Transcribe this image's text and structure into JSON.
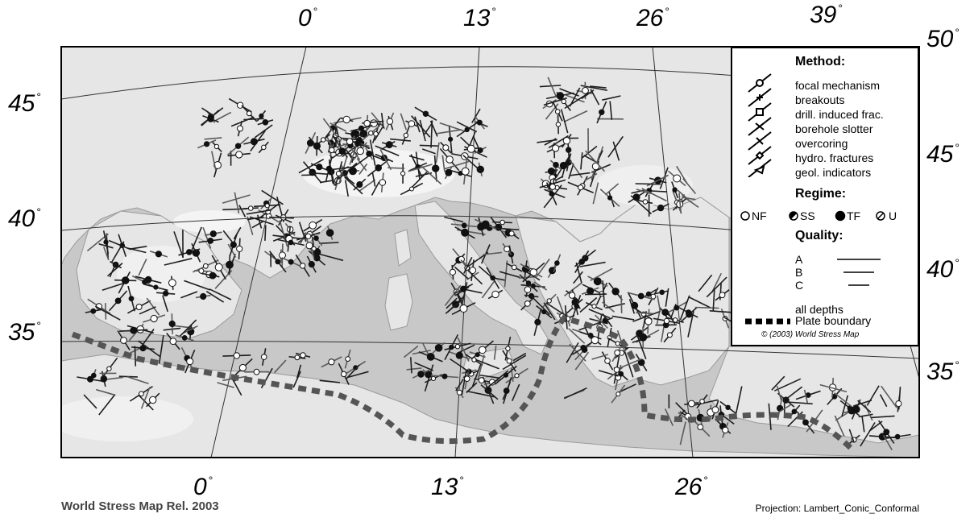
{
  "top_labels": [
    {
      "value": "0",
      "unit": "°"
    },
    {
      "value": "13",
      "unit": "°"
    },
    {
      "value": "26",
      "unit": "°"
    },
    {
      "value": "39",
      "unit": "°"
    },
    {
      "value": "50",
      "unit": "°"
    }
  ],
  "bottom_labels": [
    {
      "value": "0",
      "unit": "°"
    },
    {
      "value": "13",
      "unit": "°"
    },
    {
      "value": "26",
      "unit": "°"
    }
  ],
  "left_labels": [
    {
      "value": "45",
      "unit": "°"
    },
    {
      "value": "40",
      "unit": "°"
    },
    {
      "value": "35",
      "unit": "°"
    }
  ],
  "right_labels": [
    {
      "value": "45",
      "unit": "°"
    },
    {
      "value": "40",
      "unit": "°"
    },
    {
      "value": "35",
      "unit": "°"
    }
  ],
  "legend": {
    "method_heading": "Method:",
    "methods": [
      "focal mechanism",
      "breakouts",
      "drill. induced frac.",
      "borehole slotter",
      "overcoring",
      "hydro. fractures",
      "geol. indicators"
    ],
    "regime_heading": "Regime:",
    "regimes": [
      {
        "code": "NF",
        "symbol": "open-circle"
      },
      {
        "code": "SS",
        "symbol": "half-filled-circle"
      },
      {
        "code": "TF",
        "symbol": "filled-circle"
      },
      {
        "code": "U",
        "symbol": "slashed-circle"
      }
    ],
    "quality_heading": "Quality:",
    "qualities": [
      "A",
      "B",
      "C"
    ],
    "depths": "all depths",
    "plate_boundary": "Plate boundary",
    "copyright": "© (2003) World Stress Map"
  },
  "footer": {
    "release": "World Stress Map Rel. 2003",
    "projection": "Projection: Lambert_Conic_Conformal"
  },
  "colors": {
    "sea": "#c8c8c8",
    "land": "#e6e6e6",
    "highland": "#f4f4f4",
    "stress": "#1e1e1e",
    "plate_boundary": "#555555"
  }
}
